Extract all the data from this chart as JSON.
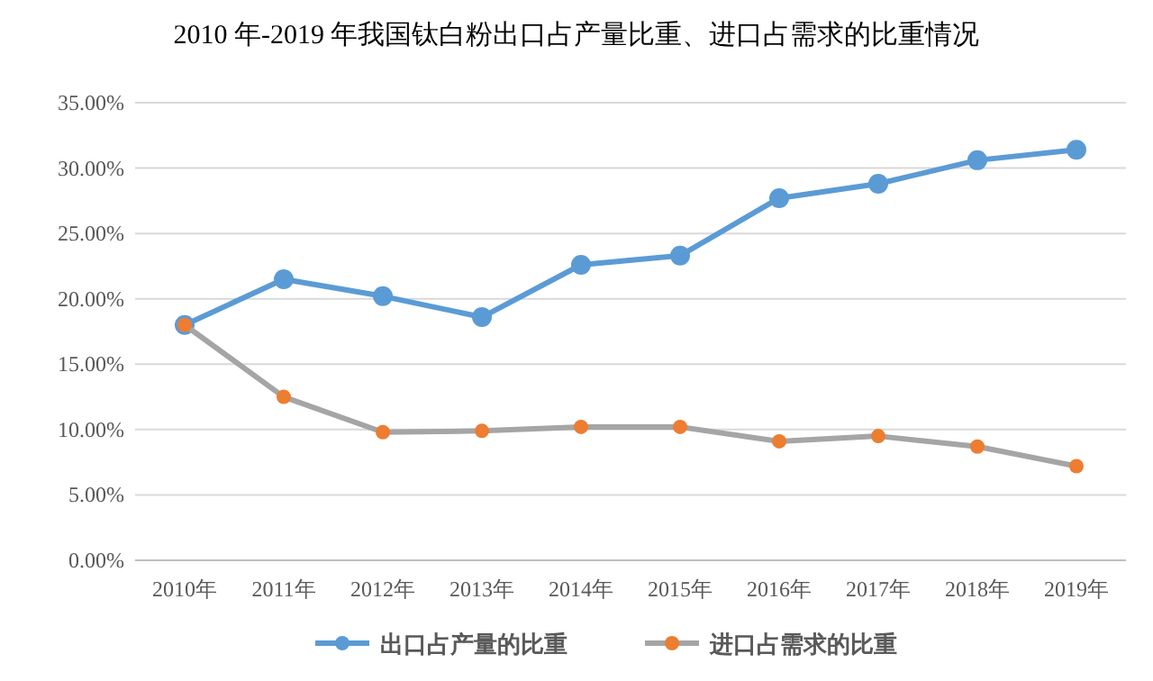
{
  "chart_data": {
    "type": "line",
    "title": "2010 年-2019 年我国钛白粉出口占产量比重、进口占需求的比重情况",
    "categories": [
      "2010年",
      "2011年",
      "2012年",
      "2013年",
      "2014年",
      "2015年",
      "2016年",
      "2017年",
      "2018年",
      "2019年"
    ],
    "series": [
      {
        "name": "出口占产量的比重",
        "color": "#5b9bd5",
        "values": [
          18.0,
          21.5,
          20.2,
          18.6,
          22.6,
          23.3,
          27.7,
          28.8,
          30.6,
          31.4
        ]
      },
      {
        "name": "进口占需求的比重",
        "color": "#a5a5a5",
        "colors": [
          "#ed7d31",
          "#ed7d31",
          "#ed7d31",
          "#ed7d31",
          "#ed7d31",
          "#ed7d31",
          "#ed7d31",
          "#ed7d31",
          "#ed7d31",
          "#ed7d31"
        ],
        "values": [
          18.0,
          12.5,
          9.8,
          9.9,
          10.2,
          10.2,
          9.1,
          9.5,
          8.7,
          7.2
        ]
      }
    ],
    "ylim": [
      0,
      35
    ],
    "yticks": [
      {
        "value": 0,
        "label": "0.00%"
      },
      {
        "value": 5,
        "label": "5.00%"
      },
      {
        "value": 10,
        "label": "10.00%"
      },
      {
        "value": 15,
        "label": "15.00%"
      },
      {
        "value": 20,
        "label": "20.00%"
      },
      {
        "value": 25,
        "label": "25.00%"
      },
      {
        "value": 30,
        "label": "30.00%"
      },
      {
        "value": 35,
        "label": "35.00%"
      }
    ],
    "grid": "y",
    "legend": "bottom",
    "marker": "circle",
    "line_style": "solid"
  }
}
